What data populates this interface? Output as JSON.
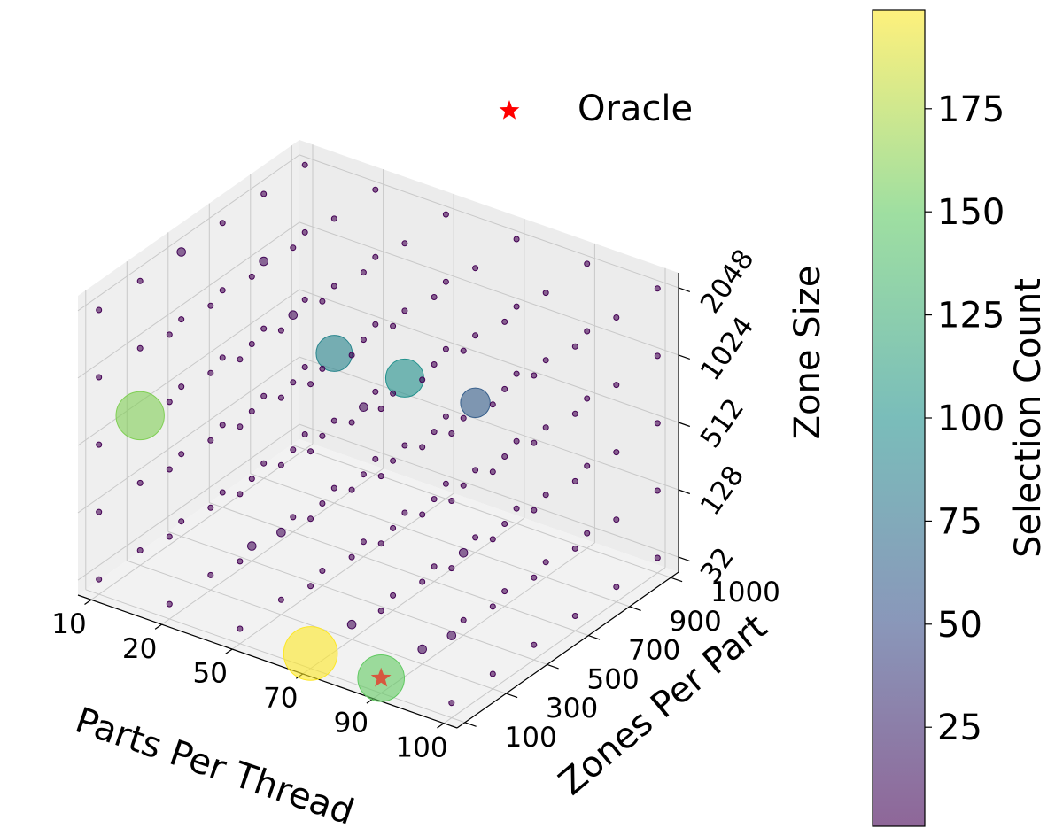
{
  "chart_data": {
    "type": "scatter",
    "projection": "3d",
    "x_axis": {
      "label": "Parts Per Thread",
      "ticks": [
        "10",
        "20",
        "50",
        "70",
        "90",
        "100"
      ]
    },
    "y_axis": {
      "label": "Zones Per Part",
      "ticks": [
        "100",
        "300",
        "500",
        "700",
        "900",
        "1000"
      ]
    },
    "z_axis": {
      "label": "Zone Size",
      "ticks": [
        "32",
        "128",
        "512",
        "1024",
        "2048"
      ]
    },
    "colorbar": {
      "label": "Selection Count",
      "range": [
        1,
        199
      ],
      "ticks": [
        "25",
        "50",
        "75",
        "100",
        "125",
        "150",
        "175"
      ]
    },
    "legend": [
      {
        "label": "Oracle",
        "marker": "red-star",
        "placement": "top-right"
      }
    ],
    "colormap": "viridis",
    "alpha": 0.6,
    "oracle": {
      "x": "90",
      "y": "100",
      "z": "32"
    },
    "highlights": [
      {
        "x": "70",
        "y": "100",
        "z": "32",
        "count": 199
      },
      {
        "x": "90",
        "y": "100",
        "z": "32",
        "count": 150
      },
      {
        "x": "10",
        "y": "300",
        "z": "512",
        "count": 160
      },
      {
        "x": "20",
        "y": "900",
        "z": "512",
        "count": 90
      },
      {
        "x": "50",
        "y": "900",
        "z": "512",
        "count": 100
      },
      {
        "x": "70",
        "y": "900",
        "z": "512",
        "count": 60
      }
    ],
    "background_count": 1,
    "background_medium": [
      {
        "x": "10",
        "y": "500",
        "z": "2048",
        "count": 5
      },
      {
        "x": "50",
        "y": "300",
        "z": "128",
        "count": 5
      },
      {
        "x": "100",
        "y": "100",
        "z": "128",
        "count": 5
      },
      {
        "x": "70",
        "y": "300",
        "z": "32",
        "count": 5
      },
      {
        "x": "20",
        "y": "700",
        "z": "1024",
        "count": 5
      },
      {
        "x": "50",
        "y": "700",
        "z": "512",
        "count": 5
      },
      {
        "x": "90",
        "y": "500",
        "z": "128",
        "count": 5
      },
      {
        "x": "10",
        "y": "900",
        "z": "1024",
        "count": 5
      },
      {
        "x": "20",
        "y": "500",
        "z": "32",
        "count": 5
      },
      {
        "x": "90",
        "y": "300",
        "z": "32",
        "count": 5
      }
    ]
  }
}
